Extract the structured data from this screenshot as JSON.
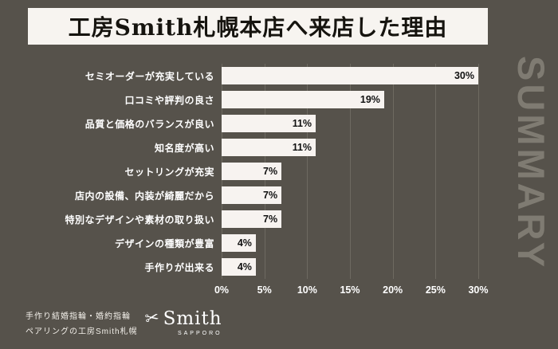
{
  "page": {
    "title": "工房Smith札幌本店へ来店した理由",
    "side_label": "SUMMARY",
    "footer": {
      "line1": "手作り結婚指輪・婚約指輪",
      "line2": "ペアリングの工房Smith札幌",
      "logo_text": "Smith",
      "logo_sub": "SAPPORO"
    },
    "colors": {
      "background": "#56524b",
      "title_bg": "#f7f4f0",
      "title_text": "#16140f",
      "bar_fill": "#f7f3f0",
      "category_text": "#ffffff",
      "value_text": "#111111",
      "grid_line": "#6e6a61",
      "side_label_text": "#7f7b72"
    }
  },
  "chart_data": {
    "type": "bar",
    "orientation": "horizontal",
    "title": "工房Smith札幌本店へ来店した理由",
    "categories": [
      "セミオーダーが充実している",
      "口コミや評判の良さ",
      "品質と価格のバランスが良い",
      "知名度が高い",
      "セットリングが充実",
      "店内の設備、内装が綺麗だから",
      "特別なデザインや素材の取り扱い",
      "デザインの種類が豊富",
      "手作りが出来る"
    ],
    "values": [
      30,
      19,
      11,
      11,
      7,
      7,
      7,
      4,
      4
    ],
    "value_labels": [
      "30%",
      "19%",
      "11%",
      "11%",
      "7%",
      "7%",
      "7%",
      "4%",
      "4%"
    ],
    "x_ticks": [
      "0%",
      "5%",
      "10%",
      "15%",
      "20%",
      "25%",
      "30%"
    ],
    "xlim": [
      0,
      30
    ],
    "xlabel": "",
    "ylabel": "",
    "grid": true,
    "legend": false
  }
}
